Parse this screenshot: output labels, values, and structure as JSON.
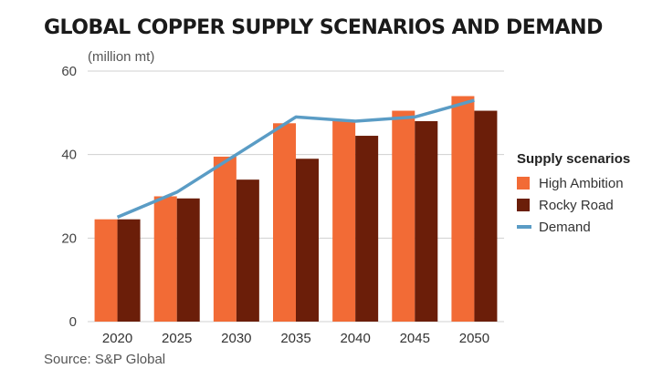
{
  "title": "GLOBAL COPPER SUPPLY SCENARIOS AND DEMAND",
  "unit_label": "(million mt)",
  "source": "Source: S&P Global",
  "legend": {
    "title": "Supply scenarios",
    "items": [
      {
        "label": "High Ambition",
        "color": "#f26b36",
        "kind": "bar"
      },
      {
        "label": "Rocky Road",
        "color": "#6b1e09",
        "kind": "bar"
      },
      {
        "label": "Demand",
        "color": "#5a9cc5",
        "kind": "line"
      }
    ]
  },
  "chart_data": {
    "type": "bar",
    "title": "GLOBAL COPPER SUPPLY SCENARIOS AND DEMAND",
    "ylabel": "(million mt)",
    "ylim": [
      0,
      60
    ],
    "yticks": [
      0,
      20,
      40,
      60
    ],
    "grid": true,
    "legend_position": "right",
    "categories": [
      "2020",
      "2025",
      "2030",
      "2035",
      "2040",
      "2045",
      "2050"
    ],
    "series": [
      {
        "name": "High Ambition",
        "type": "bar",
        "color": "#f26b36",
        "values": [
          24.5,
          30,
          39.5,
          47.5,
          48,
          50.5,
          54
        ]
      },
      {
        "name": "Rocky Road",
        "type": "bar",
        "color": "#6b1e09",
        "values": [
          24.5,
          29.5,
          34,
          39,
          44.5,
          48,
          50.5
        ]
      },
      {
        "name": "Demand",
        "type": "line",
        "color": "#5a9cc5",
        "values": [
          25,
          31,
          40,
          49,
          48,
          49,
          53
        ]
      }
    ]
  }
}
